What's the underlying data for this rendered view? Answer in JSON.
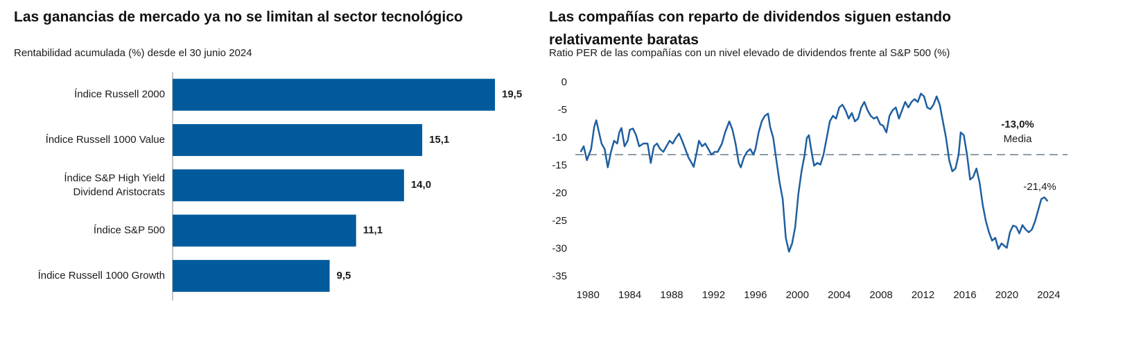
{
  "chart_data": [
    {
      "type": "hbar",
      "title": "Las ganancias de mercado ya no se limitan al sector tecnológico",
      "subtitle": "Rentabilidad acumulada (%) desde el 30 junio 2024",
      "categories": [
        "Índice Russell 2000",
        "Índice Russell 1000 Value",
        "Índice S&P High Yield\nDividend Aristocrats",
        "Índice S&P 500",
        "Índice Russell 1000 Growth"
      ],
      "values": [
        19.5,
        15.1,
        14.0,
        11.1,
        9.5
      ],
      "value_labels": [
        "19,5",
        "15,1",
        "14,0",
        "11,1",
        "9,5"
      ],
      "color": "#005a9c"
    },
    {
      "type": "line",
      "title": "Las compañías con reparto de dividendos siguen estando relativamente baratas",
      "subtitle": "Ratio PER de las compañías con un nivel elevado de dividendos frente al S&P 500 (%)",
      "xlim": [
        1978.8,
        2025.8
      ],
      "xticks": [
        1980,
        1984,
        1988,
        1992,
        1996,
        2000,
        2004,
        2008,
        2012,
        2016,
        2020,
        2024
      ],
      "ylim": [
        -37.5,
        1.5
      ],
      "yticks": [
        0,
        -5,
        -10,
        -15,
        -20,
        -25,
        -30,
        -35
      ],
      "x": [
        1979.3,
        1979.6,
        1979.9,
        1980.3,
        1980.6,
        1980.8,
        1981.0,
        1981.3,
        1981.6,
        1981.9,
        1982.2,
        1982.5,
        1982.8,
        1983.0,
        1983.2,
        1983.5,
        1983.8,
        1984.0,
        1984.3,
        1984.6,
        1984.9,
        1985.3,
        1985.7,
        1986.0,
        1986.3,
        1986.6,
        1986.9,
        1987.2,
        1987.5,
        1987.8,
        1988.1,
        1988.4,
        1988.7,
        1989.0,
        1989.3,
        1989.6,
        1989.9,
        1990.1,
        1990.4,
        1990.6,
        1990.9,
        1991.2,
        1991.5,
        1991.8,
        1992.1,
        1992.4,
        1992.8,
        1993.1,
        1993.5,
        1993.8,
        1994.1,
        1994.4,
        1994.6,
        1994.9,
        1995.2,
        1995.5,
        1995.8,
        1996.0,
        1996.3,
        1996.6,
        1996.9,
        1997.2,
        1997.4,
        1997.7,
        1998.0,
        1998.3,
        1998.6,
        1998.9,
        1999.2,
        1999.5,
        1999.8,
        2000.1,
        2000.4,
        2000.7,
        2000.9,
        2001.1,
        2001.4,
        2001.6,
        2001.9,
        2002.2,
        2002.5,
        2002.8,
        2003.1,
        2003.4,
        2003.7,
        2004.0,
        2004.3,
        2004.6,
        2004.9,
        2005.2,
        2005.5,
        2005.8,
        2006.1,
        2006.4,
        2006.7,
        2007.0,
        2007.3,
        2007.6,
        2007.9,
        2008.2,
        2008.5,
        2008.8,
        2009.1,
        2009.4,
        2009.7,
        2010.0,
        2010.3,
        2010.6,
        2010.9,
        2011.2,
        2011.5,
        2011.8,
        2012.1,
        2012.4,
        2012.7,
        2013.0,
        2013.3,
        2013.6,
        2013.9,
        2014.2,
        2014.5,
        2014.8,
        2015.1,
        2015.4,
        2015.6,
        2015.9,
        2016.2,
        2016.5,
        2016.8,
        2017.1,
        2017.4,
        2017.7,
        2018.0,
        2018.3,
        2018.6,
        2018.9,
        2019.2,
        2019.5,
        2019.8,
        2020.0,
        2020.3,
        2020.6,
        2020.9,
        2021.2,
        2021.5,
        2021.8,
        2022.1,
        2022.4,
        2022.7,
        2023.0,
        2023.3,
        2023.6,
        2023.9
      ],
      "series": [
        {
          "color": "#1f5fa0",
          "values": [
            -12.5,
            -11.5,
            -14,
            -12,
            -8,
            -6.8,
            -8.5,
            -11,
            -12,
            -15.3,
            -12.5,
            -10.5,
            -11,
            -9,
            -8.2,
            -11.5,
            -10.5,
            -8.5,
            -8.3,
            -9.5,
            -11.5,
            -11,
            -11,
            -14.5,
            -11.5,
            -11,
            -12,
            -12.5,
            -11.5,
            -10.5,
            -11,
            -10,
            -9.2,
            -10.5,
            -12,
            -13.5,
            -14.5,
            -15.2,
            -12.5,
            -10.5,
            -11.5,
            -11,
            -12,
            -13,
            -12.5,
            -12.5,
            -11,
            -9,
            -7,
            -8.5,
            -11,
            -14.5,
            -15.3,
            -13.5,
            -12.5,
            -12,
            -13,
            -12,
            -9,
            -7,
            -6,
            -5.6,
            -8,
            -10,
            -14,
            -18,
            -21,
            -28,
            -30.5,
            -29,
            -26,
            -20,
            -16,
            -13,
            -10,
            -9.5,
            -13,
            -15,
            -14.5,
            -14.8,
            -13,
            -10,
            -7,
            -6,
            -6.5,
            -4.5,
            -4,
            -5,
            -6.5,
            -5.5,
            -7,
            -6.5,
            -4.5,
            -3.5,
            -5,
            -6,
            -6.5,
            -6.2,
            -7.5,
            -7.8,
            -9,
            -6,
            -5,
            -4.5,
            -6.5,
            -5,
            -3.5,
            -4.5,
            -3.5,
            -3,
            -3.5,
            -2,
            -2.5,
            -4.5,
            -4.8,
            -4,
            -2.5,
            -4,
            -7,
            -10,
            -14,
            -16,
            -15.5,
            -13,
            -9,
            -9.5,
            -13,
            -17.5,
            -17,
            -15.5,
            -18,
            -22,
            -25,
            -27,
            -28.5,
            -28,
            -30,
            -29,
            -29.5,
            -29.8,
            -27,
            -25.8,
            -26,
            -27.2,
            -25.7,
            -26.5,
            -27,
            -26.5,
            -25,
            -23,
            -21,
            -20.7,
            -21.4
          ]
        }
      ],
      "mean": {
        "value": -13,
        "label": "-13,0%",
        "text": "Media",
        "color": "#b5267b",
        "line_color": "#8c9caa"
      },
      "end_label": {
        "value": -21.4,
        "label": "-21,4%",
        "color": "#2a6ea6"
      }
    }
  ]
}
